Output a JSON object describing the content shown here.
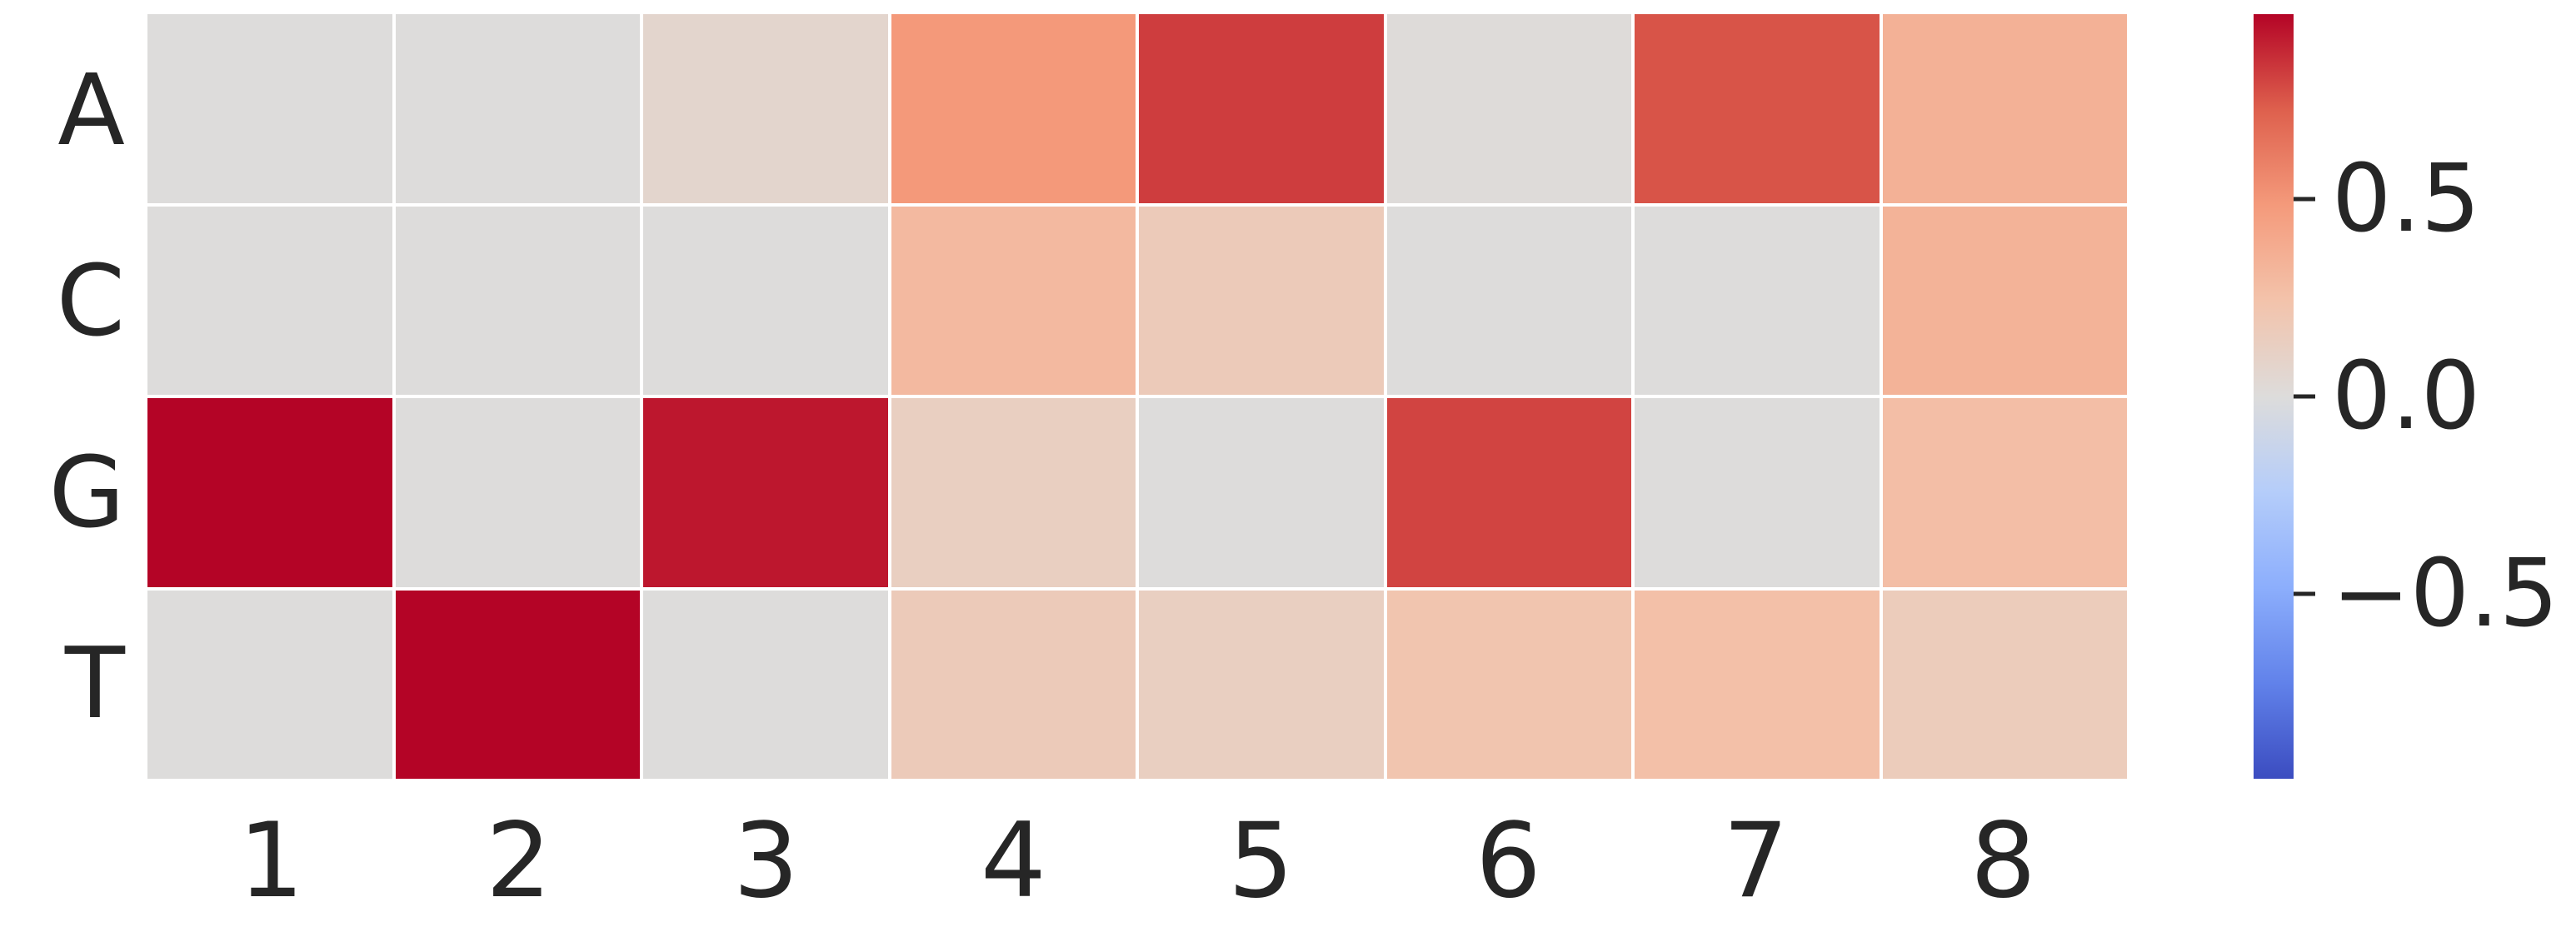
{
  "chart_data": {
    "type": "heatmap",
    "title": "",
    "xlabel": "",
    "ylabel": "",
    "rows": [
      "A",
      "C",
      "G",
      "T"
    ],
    "columns": [
      "1",
      "2",
      "3",
      "4",
      "5",
      "6",
      "7",
      "8"
    ],
    "values": [
      [
        0.0,
        0.0,
        0.07,
        0.49,
        0.82,
        0.01,
        0.76,
        0.35
      ],
      [
        0.0,
        0.0,
        0.0,
        0.3,
        0.17,
        0.0,
        0.0,
        0.34
      ],
      [
        0.97,
        0.0,
        0.92,
        0.13,
        0.0,
        0.8,
        0.0,
        0.27
      ],
      [
        0.0,
        0.97,
        0.0,
        0.17,
        0.13,
        0.22,
        0.26,
        0.16
      ]
    ],
    "colormap": "coolwarm",
    "vmin": -0.97,
    "vmax": 0.97,
    "grid_line_color": "#ffffff",
    "legend_position": "right",
    "colorbar": {
      "ticks": [
        {
          "label": "0.5",
          "value": 0.5
        },
        {
          "label": "0.0",
          "value": 0.0
        },
        {
          "label": "−0.5",
          "value": -0.5
        }
      ],
      "top_color": "#b40426",
      "mid_color": "#dddcdc",
      "bottom_color": "#3b4cc0"
    },
    "text_color": "#262626",
    "background_color": "#ffffff"
  }
}
